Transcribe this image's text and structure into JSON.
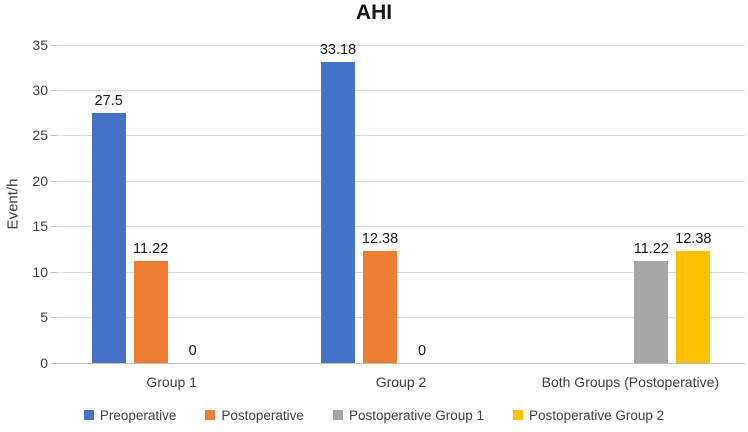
{
  "figure": {
    "background": "#ffffff"
  },
  "chart_data": {
    "type": "bar",
    "title": "AHI",
    "xlabel": "",
    "ylabel": "Event/h",
    "ylim": [
      0,
      35
    ],
    "yticks": [
      0,
      5,
      10,
      15,
      20,
      25,
      30,
      35
    ],
    "grid": true,
    "data_labels": true,
    "legend_position": "bottom",
    "categories": [
      "Group 1",
      "Group 2",
      "Both Groups (Postoperative)"
    ],
    "series": [
      {
        "name": "Preoperative",
        "color": "#4472C4",
        "values": [
          27.5,
          33.18,
          null
        ]
      },
      {
        "name": "Postoperative",
        "color": "#ED7D31",
        "values": [
          11.22,
          12.38,
          null
        ]
      },
      {
        "name": "Postoperative Group 1",
        "color": "#A5A5A5",
        "values": [
          0,
          0,
          11.22
        ]
      },
      {
        "name": "Postoperative Group 2",
        "color": "#FFC000",
        "values": [
          null,
          null,
          12.38
        ]
      }
    ]
  }
}
